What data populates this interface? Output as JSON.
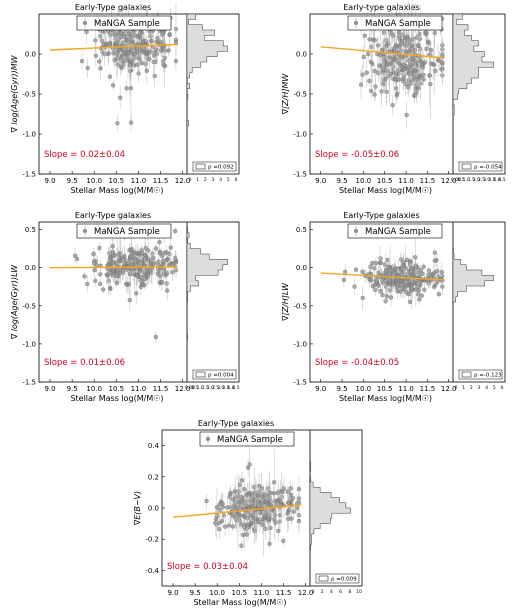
{
  "style": {
    "point_color": "#8a8a8a",
    "fit_color": "#f5a623",
    "slope_color": "#d0021b",
    "hist_fill": "#dddddd"
  },
  "chart_data": [
    {
      "type": "scatter",
      "title": "Early-Type galaxies",
      "xlabel": "Stellar Mass log(M/M☉)",
      "ylabel": "∇ log(Age(Gyr))MW",
      "legend": "MaNGA Sample",
      "slope_text": "Slope = 0.02±0.04",
      "rho_text": "ρ =0.092",
      "xlim": [
        8.75,
        12.1
      ],
      "ylim": [
        -1.5,
        0.5
      ],
      "xticks": [
        "9.0",
        "9.5",
        "10.0",
        "10.5",
        "11.0",
        "11.5",
        "12.0"
      ],
      "yticks": [
        "-1.5",
        "-1.0",
        "-0.5",
        "0.0"
      ],
      "hist_ticks": [
        "0",
        "1",
        "2",
        "3",
        "4",
        "5",
        "6"
      ],
      "fit": {
        "x": [
          9.0,
          11.9
        ],
        "y": [
          0.05,
          0.12
        ]
      },
      "center": 0.1,
      "spread": 0.17,
      "err": 0.12
    },
    {
      "type": "scatter",
      "title": "Early-type galaxies",
      "xlabel": "Stellar Mass log(M/M☉)",
      "ylabel": "∇[Z/H]MW",
      "legend": "MaNGA Sample",
      "slope_text": "Slope = -0.05±0.06",
      "rho_text": "ρ =-0.054",
      "xlim": [
        8.75,
        12.1
      ],
      "ylim": [
        -1.5,
        0.5
      ],
      "xticks": [
        "9.0",
        "9.5",
        "10.0",
        "10.5",
        "11.0",
        "11.5",
        "12.0"
      ],
      "yticks": [
        "-1.5",
        "-1.0",
        "-0.5",
        "0.0"
      ],
      "hist_ticks": [
        "0.00",
        "0.5",
        "1.0",
        "1.5",
        "2.0",
        "2.5",
        "3.0",
        "3.5",
        "4.0",
        "4.5"
      ],
      "fit": {
        "x": [
          9.0,
          11.9
        ],
        "y": [
          0.09,
          -0.05
        ]
      },
      "center": -0.05,
      "spread": 0.22,
      "err": 0.15
    },
    {
      "type": "scatter",
      "title": "Early-Type galaxies",
      "xlabel": "Stellar Mass log(M/M☉)",
      "ylabel": "∇ log(Age(Gyr))LW",
      "legend": "MaNGA Sample",
      "slope_text": "Slope = 0.01±0.06",
      "rho_text": "ρ =0.004",
      "xlim": [
        8.75,
        12.1
      ],
      "ylim": [
        -1.5,
        0.6
      ],
      "xticks": [
        "9.0",
        "9.5",
        "10.0",
        "10.5",
        "11.0",
        "11.5",
        "12.0"
      ],
      "yticks": [
        "-1.5",
        "-1.0",
        "-0.5",
        "0.0",
        "0.5"
      ],
      "hist_ticks": [
        "0.00",
        "0.5",
        "1.0",
        "1.5",
        "2.0",
        "2.5",
        "3.0",
        "3.5",
        "4.0",
        "4.5"
      ],
      "fit": {
        "x": [
          9.0,
          11.9
        ],
        "y": [
          0.0,
          0.01
        ]
      },
      "center": 0.02,
      "spread": 0.13,
      "err": 0.1
    },
    {
      "type": "scatter",
      "title": "Early-Type galaxies",
      "xlabel": "Stellar Mass log(M/M☉)",
      "ylabel": "∇[Z/H]LW",
      "legend": "MaNGA Sample",
      "slope_text": "Slope = -0.04±0.05",
      "rho_text": "ρ =-0.123",
      "xlim": [
        8.75,
        12.1
      ],
      "ylim": [
        -1.5,
        0.6
      ],
      "xticks": [
        "9.0",
        "9.5",
        "10.0",
        "10.5",
        "11.0",
        "11.5",
        "12.0"
      ],
      "yticks": [
        "-1.5",
        "-1.0",
        "-0.5",
        "0.0",
        "0.5"
      ],
      "hist_ticks": [
        "0",
        "1",
        "2",
        "3",
        "4",
        "5",
        "6"
      ],
      "fit": {
        "x": [
          9.0,
          11.9
        ],
        "y": [
          -0.07,
          -0.16
        ]
      },
      "center": -0.13,
      "spread": 0.1,
      "err": 0.09
    },
    {
      "type": "scatter",
      "title": "Early-Type galaxies",
      "xlabel": "Stellar Mass log(M/M☉)",
      "ylabel": "∇E(B−V)",
      "legend": "MaNGA Sample",
      "slope_text": "Slope = 0.03±0.04",
      "rho_text": "ρ =0.009",
      "xlim": [
        8.75,
        12.1
      ],
      "ylim": [
        -0.5,
        0.5
      ],
      "xticks": [
        "9.0",
        "9.5",
        "10.0",
        "10.5",
        "11.0",
        "11.5",
        "12.0"
      ],
      "yticks": [
        "-0.4",
        "-0.2",
        "0.0",
        "0.2",
        "0.4"
      ],
      "hist_ticks": [
        "0",
        "2",
        "4",
        "6",
        "8",
        "10"
      ],
      "fit": {
        "x": [
          9.0,
          11.9
        ],
        "y": [
          -0.06,
          0.02
        ]
      },
      "center": -0.01,
      "spread": 0.07,
      "err": 0.07
    }
  ]
}
